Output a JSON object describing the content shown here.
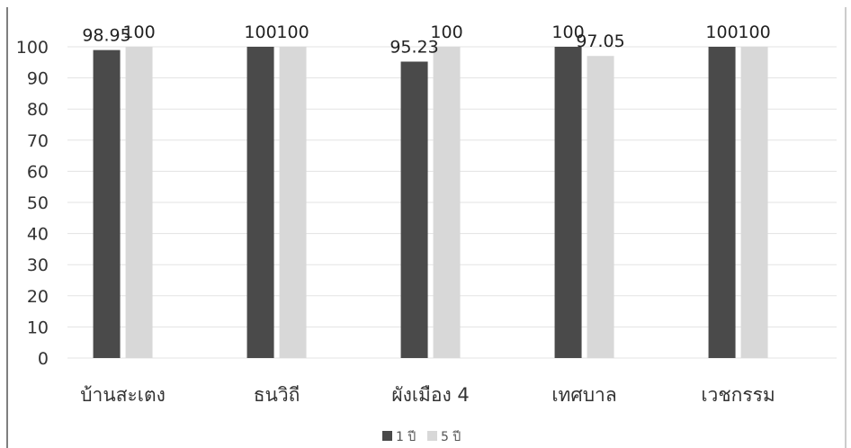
{
  "chart_data": {
    "type": "bar",
    "title": "",
    "xlabel": "",
    "ylabel": "",
    "ylim": [
      0,
      100
    ],
    "yticks": [
      0,
      10,
      20,
      30,
      40,
      50,
      60,
      70,
      80,
      90,
      100
    ],
    "categories": [
      "บ้านสะเตง",
      "ธนวิถี",
      "ผังเมือง 4",
      "เทศบาล",
      "เวชกรรม"
    ],
    "series": [
      {
        "name": "1 ปี",
        "values": [
          98.95,
          100,
          95.23,
          100,
          100
        ],
        "labels": [
          "98.95",
          "100",
          "95.23",
          "100",
          "100"
        ],
        "color": "#4a4a4a"
      },
      {
        "name": "5 ปี",
        "values": [
          100,
          100,
          100,
          97.05,
          100
        ],
        "labels": [
          "100",
          "100",
          "100",
          "97.05",
          "100"
        ],
        "color": "#d8d8d8"
      }
    ],
    "legend_position": "bottom",
    "grid": true
  }
}
